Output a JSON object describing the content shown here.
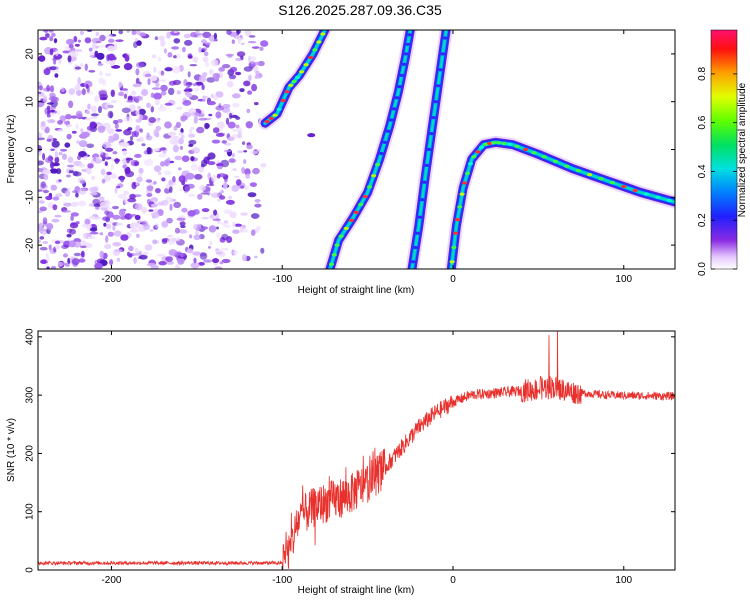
{
  "title": "S126.2025.287.09.36.C35",
  "charts": [
    {
      "type": "heatmap",
      "xlabel": "Height of straight line (km)",
      "ylabel": "Frequency (Hz)",
      "xlim": [
        -243,
        130
      ],
      "ylim": [
        -25,
        25
      ],
      "xticks": [
        -200,
        -100,
        0,
        100
      ],
      "yticks": [
        -20,
        -10,
        0,
        10,
        20
      ],
      "noise_region_x": [
        -243,
        -110
      ],
      "traces": [
        {
          "name": "early-segment",
          "points": [
            [
              -110,
              5.5
            ],
            [
              -103,
              7.5
            ],
            [
              -96,
              13
            ],
            [
              -90,
              15.5
            ],
            [
              -82,
              20
            ],
            [
              -75,
              25
            ]
          ]
        },
        {
          "name": "arc-left",
          "points": [
            [
              -72,
              -25
            ],
            [
              -67,
              -19
            ],
            [
              -58,
              -14
            ],
            [
              -50,
              -9
            ],
            [
              -43,
              -2
            ],
            [
              -37,
              5
            ],
            [
              -32,
              12
            ],
            [
              -28,
              19
            ],
            [
              -25,
              25
            ]
          ]
        },
        {
          "name": "arc-middle",
          "points": [
            [
              -24,
              -25
            ],
            [
              -20,
              -16
            ],
            [
              -16,
              -5
            ],
            [
              -12,
              5
            ],
            [
              -8,
              15
            ],
            [
              -4,
              25
            ]
          ]
        },
        {
          "name": "arc-right",
          "points": [
            [
              -1,
              -25
            ],
            [
              2,
              -16
            ],
            [
              6,
              -8
            ],
            [
              11,
              -2
            ],
            [
              18,
              1
            ],
            [
              25,
              1.5
            ],
            [
              35,
              1
            ],
            [
              50,
              -1
            ],
            [
              70,
              -4
            ],
            [
              90,
              -6.5
            ],
            [
              110,
              -9
            ],
            [
              130,
              -11
            ]
          ]
        }
      ],
      "colorbar": {
        "label": "Normalized spectral amplitude",
        "ticks": [
          "0.0",
          "0.2",
          "0.4",
          "0.6",
          "0.8"
        ],
        "tick_values": [
          0,
          0.2,
          0.4,
          0.6,
          0.8
        ],
        "range": [
          0,
          0.98
        ]
      }
    },
    {
      "type": "line",
      "xlabel": "Height of straight line (km)",
      "ylabel": "SNR (10 * v/v)",
      "xlim": [
        -243,
        130
      ],
      "ylim": [
        0,
        410
      ],
      "xticks": [
        -200,
        -100,
        0,
        100
      ],
      "yticks": [
        0,
        100,
        200,
        300,
        400
      ],
      "color": "#e8302c",
      "series_envelope": [
        [
          -243,
          12
        ],
        [
          -100,
          12
        ],
        [
          -95,
          40
        ],
        [
          -90,
          90
        ],
        [
          -80,
          110
        ],
        [
          -70,
          120
        ],
        [
          -60,
          130
        ],
        [
          -50,
          150
        ],
        [
          -40,
          175
        ],
        [
          -30,
          210
        ],
        [
          -20,
          245
        ],
        [
          -10,
          270
        ],
        [
          0,
          288
        ],
        [
          10,
          300
        ],
        [
          30,
          305
        ],
        [
          50,
          310
        ],
        [
          57,
          315
        ],
        [
          70,
          305
        ],
        [
          90,
          300
        ],
        [
          130,
          298
        ]
      ]
    }
  ],
  "colors": {
    "snr_line": "#e8302c",
    "noise": "#7d2ee0",
    "axis": "#000000"
  }
}
